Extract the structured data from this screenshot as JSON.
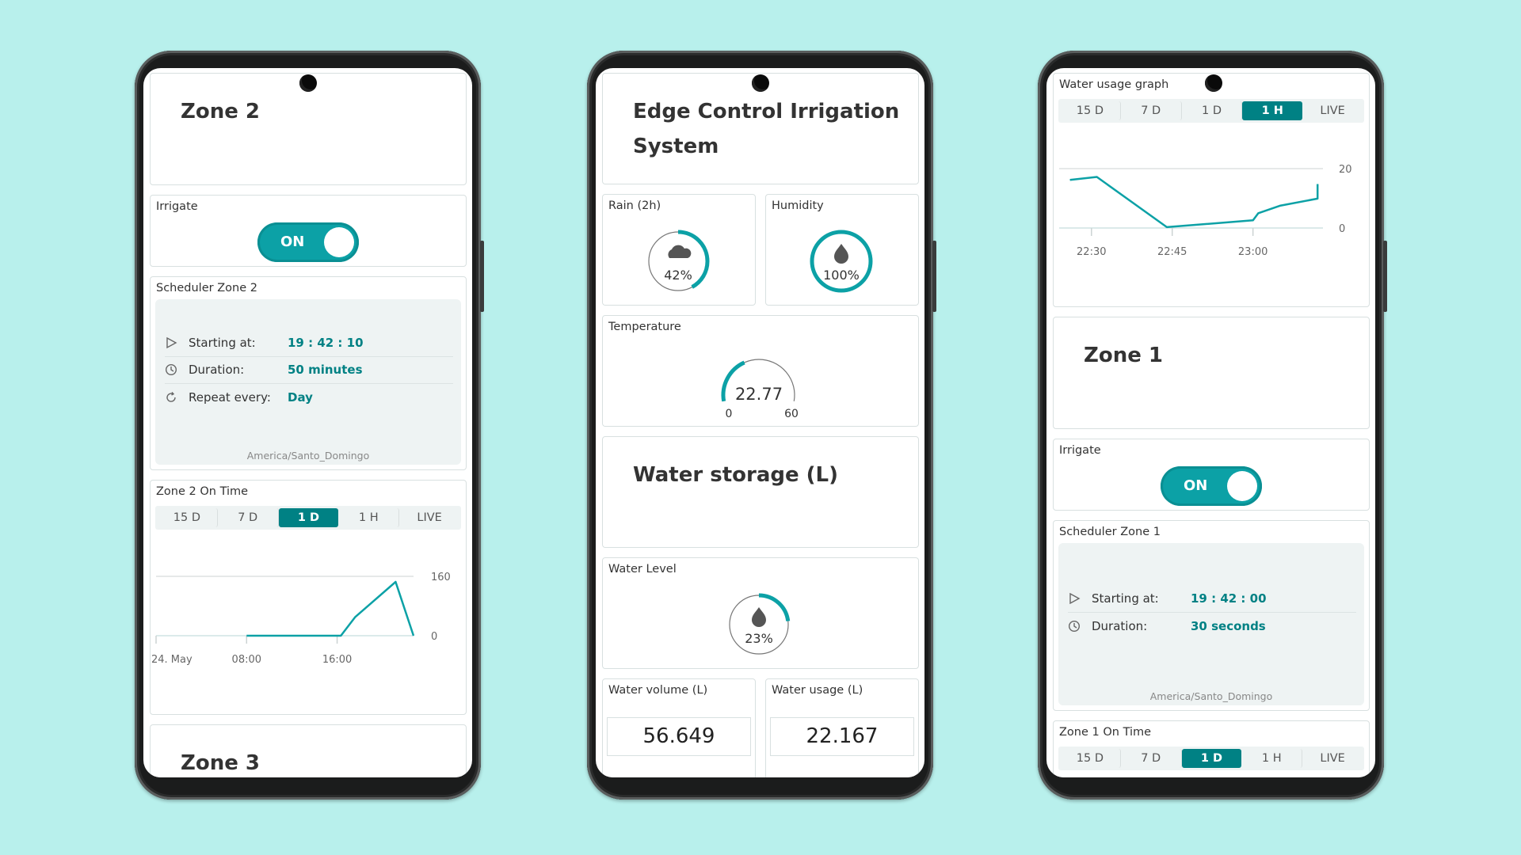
{
  "colors": {
    "background": "#b8f0ec",
    "accent": "#0ca1a6",
    "tab_selected": "#008184",
    "value_text": "#008184"
  },
  "phone_left": {
    "title": "Zone 2",
    "irrigate": {
      "label": "Irrigate",
      "toggle_text": "ON",
      "state": true
    },
    "scheduler": {
      "title": "Scheduler Zone 2",
      "rows": [
        {
          "icon": "play-icon",
          "key": "Starting at:",
          "value": "19 : 42 : 10"
        },
        {
          "icon": "clock-icon",
          "key": "Duration:",
          "value": "50 minutes"
        },
        {
          "icon": "repeat-icon",
          "key": "Repeat every:",
          "value": "Day"
        }
      ],
      "timezone": "America/Santo_Domingo"
    },
    "on_time": {
      "title": "Zone 2 On Time",
      "tabs": [
        "15 D",
        "7 D",
        "1 D",
        "1 H",
        "LIVE"
      ],
      "selected_tab": "1 D"
    },
    "next_title": "Zone 3"
  },
  "phone_middle": {
    "title_line1": "Edge Control Irrigation",
    "title_line2": "System",
    "rain": {
      "label": "Rain (2h)",
      "value_text": "42%",
      "percent": 42,
      "icon": "cloud-icon"
    },
    "humidity": {
      "label": "Humidity",
      "value_text": "100%",
      "percent": 100,
      "icon": "water-drop-icon"
    },
    "temperature": {
      "label": "Temperature",
      "value_text": "22.77",
      "value": 22.77,
      "min": "0",
      "max": "60"
    },
    "storage_title": "Water storage (L)",
    "water_level": {
      "label": "Water Level",
      "value_text": "23%",
      "percent": 23,
      "icon": "water-drop-icon"
    },
    "water_volume": {
      "label": "Water volume (L)",
      "value": "56.649"
    },
    "water_usage": {
      "label": "Water usage (L)",
      "value": "22.167"
    }
  },
  "phone_right": {
    "usage_graph": {
      "title": "Water usage graph",
      "tabs": [
        "15 D",
        "7 D",
        "1 D",
        "1 H",
        "LIVE"
      ],
      "selected_tab": "1 H"
    },
    "title": "Zone 1",
    "irrigate": {
      "label": "Irrigate",
      "toggle_text": "ON",
      "state": true
    },
    "scheduler": {
      "title": "Scheduler Zone 1",
      "rows": [
        {
          "icon": "play-icon",
          "key": "Starting at:",
          "value": "19 : 42 : 00"
        },
        {
          "icon": "clock-icon",
          "key": "Duration:",
          "value": "30 seconds"
        }
      ],
      "timezone": "America/Santo_Domingo"
    },
    "on_time": {
      "title": "Zone 1 On Time",
      "tabs": [
        "15 D",
        "7 D",
        "1 D",
        "1 H",
        "LIVE"
      ],
      "selected_tab": "1 D"
    }
  },
  "chart_data": [
    {
      "id": "zone2-on-time",
      "type": "line",
      "title": "Zone 2 On Time",
      "x": [
        "08:00",
        "16:20",
        "17:35",
        "21:10",
        "22:45"
      ],
      "y": [
        0,
        0,
        50,
        145,
        0
      ],
      "xrange": [
        "00:00",
        "22:45"
      ],
      "ylim": [
        0,
        160
      ],
      "xticks": [
        {
          "at": "00:00",
          "label": "24. May"
        },
        {
          "at": "08:00",
          "label": "08:00"
        },
        {
          "at": "16:00",
          "label": "16:00"
        }
      ],
      "yticks": [
        "0",
        "160"
      ],
      "grid": true,
      "color": "#0ca1a6"
    },
    {
      "id": "water-usage",
      "type": "line",
      "title": "Water usage graph",
      "x": [
        "22:26",
        "22:31",
        "22:44",
        "23:00",
        "23:01",
        "23:05",
        "23:12",
        "23:12"
      ],
      "y": [
        16.2,
        17.2,
        0.3,
        2.6,
        5.0,
        7.5,
        9.9,
        14.8
      ],
      "xrange": [
        "22:24",
        "23:13"
      ],
      "ylim": [
        0,
        20
      ],
      "xticks": [
        {
          "at": "22:30",
          "label": "22:30"
        },
        {
          "at": "22:45",
          "label": "22:45"
        },
        {
          "at": "23:00",
          "label": "23:00"
        }
      ],
      "yticks": [
        "0",
        "20"
      ],
      "grid": true,
      "color": "#0ca1a6"
    }
  ]
}
